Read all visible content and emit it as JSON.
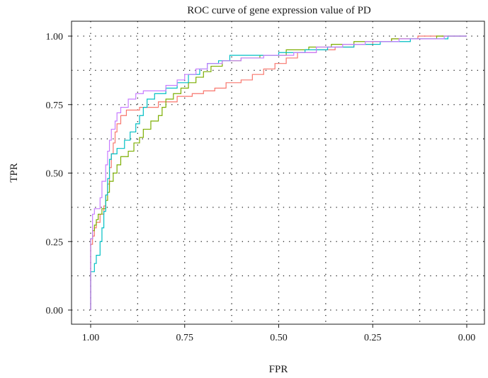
{
  "chart_data": {
    "type": "line",
    "title": "ROC curve of gene expression value of PD",
    "xlabel": "FPR",
    "ylabel": "TPR",
    "x_reversed": true,
    "xlim": [
      1.0,
      0.0
    ],
    "ylim": [
      0.0,
      1.0
    ],
    "x_ticks": [
      "1.00",
      "0.75",
      "0.50",
      "0.25",
      "0.00"
    ],
    "y_ticks": [
      "0.00",
      "0.25",
      "0.50",
      "0.75",
      "1.00"
    ],
    "x_tick_values": [
      1.0,
      0.75,
      0.5,
      0.25,
      0.0
    ],
    "y_tick_values": [
      0.0,
      0.25,
      0.5,
      0.75,
      1.0
    ],
    "grid": "dotted",
    "legend": "none",
    "series": [
      {
        "color": "#f8766d",
        "points": [
          [
            1.0,
            0.0
          ],
          [
            1.0,
            0.24
          ],
          [
            0.995,
            0.24
          ],
          [
            0.995,
            0.27
          ],
          [
            0.99,
            0.27
          ],
          [
            0.99,
            0.3
          ],
          [
            0.985,
            0.3
          ],
          [
            0.985,
            0.32
          ],
          [
            0.975,
            0.32
          ],
          [
            0.975,
            0.35
          ],
          [
            0.965,
            0.35
          ],
          [
            0.965,
            0.38
          ],
          [
            0.96,
            0.38
          ],
          [
            0.96,
            0.42
          ],
          [
            0.955,
            0.42
          ],
          [
            0.955,
            0.46
          ],
          [
            0.95,
            0.46
          ],
          [
            0.95,
            0.52
          ],
          [
            0.945,
            0.52
          ],
          [
            0.945,
            0.57
          ],
          [
            0.94,
            0.57
          ],
          [
            0.94,
            0.61
          ],
          [
            0.935,
            0.61
          ],
          [
            0.935,
            0.65
          ],
          [
            0.93,
            0.65
          ],
          [
            0.93,
            0.68
          ],
          [
            0.92,
            0.68
          ],
          [
            0.92,
            0.71
          ],
          [
            0.905,
            0.71
          ],
          [
            0.905,
            0.73
          ],
          [
            0.87,
            0.73
          ],
          [
            0.87,
            0.74
          ],
          [
            0.82,
            0.74
          ],
          [
            0.82,
            0.76
          ],
          [
            0.77,
            0.76
          ],
          [
            0.77,
            0.78
          ],
          [
            0.73,
            0.78
          ],
          [
            0.73,
            0.79
          ],
          [
            0.7,
            0.79
          ],
          [
            0.7,
            0.8
          ],
          [
            0.67,
            0.8
          ],
          [
            0.67,
            0.81
          ],
          [
            0.64,
            0.81
          ],
          [
            0.64,
            0.83
          ],
          [
            0.6,
            0.83
          ],
          [
            0.6,
            0.84
          ],
          [
            0.57,
            0.84
          ],
          [
            0.57,
            0.86
          ],
          [
            0.54,
            0.86
          ],
          [
            0.54,
            0.88
          ],
          [
            0.51,
            0.88
          ],
          [
            0.51,
            0.9
          ],
          [
            0.48,
            0.9
          ],
          [
            0.48,
            0.92
          ],
          [
            0.45,
            0.92
          ],
          [
            0.45,
            0.94
          ],
          [
            0.4,
            0.94
          ],
          [
            0.4,
            0.95
          ],
          [
            0.35,
            0.95
          ],
          [
            0.35,
            0.96
          ],
          [
            0.3,
            0.96
          ],
          [
            0.3,
            0.97
          ],
          [
            0.25,
            0.97
          ],
          [
            0.25,
            0.98
          ],
          [
            0.2,
            0.98
          ],
          [
            0.2,
            0.99
          ],
          [
            0.13,
            0.99
          ],
          [
            0.13,
            1.0
          ],
          [
            0.0,
            1.0
          ]
        ]
      },
      {
        "color": "#7cae00",
        "points": [
          [
            1.0,
            0.0
          ],
          [
            1.0,
            0.26
          ],
          [
            0.995,
            0.26
          ],
          [
            0.995,
            0.29
          ],
          [
            0.99,
            0.29
          ],
          [
            0.99,
            0.31
          ],
          [
            0.985,
            0.31
          ],
          [
            0.985,
            0.33
          ],
          [
            0.98,
            0.33
          ],
          [
            0.98,
            0.35
          ],
          [
            0.97,
            0.35
          ],
          [
            0.97,
            0.37
          ],
          [
            0.96,
            0.37
          ],
          [
            0.96,
            0.4
          ],
          [
            0.955,
            0.4
          ],
          [
            0.955,
            0.43
          ],
          [
            0.95,
            0.43
          ],
          [
            0.95,
            0.47
          ],
          [
            0.94,
            0.47
          ],
          [
            0.94,
            0.5
          ],
          [
            0.93,
            0.5
          ],
          [
            0.93,
            0.53
          ],
          [
            0.92,
            0.53
          ],
          [
            0.92,
            0.56
          ],
          [
            0.9,
            0.56
          ],
          [
            0.9,
            0.58
          ],
          [
            0.885,
            0.58
          ],
          [
            0.885,
            0.61
          ],
          [
            0.87,
            0.61
          ],
          [
            0.87,
            0.63
          ],
          [
            0.86,
            0.63
          ],
          [
            0.86,
            0.66
          ],
          [
            0.84,
            0.66
          ],
          [
            0.84,
            0.69
          ],
          [
            0.82,
            0.69
          ],
          [
            0.82,
            0.71
          ],
          [
            0.81,
            0.71
          ],
          [
            0.81,
            0.74
          ],
          [
            0.8,
            0.74
          ],
          [
            0.8,
            0.77
          ],
          [
            0.78,
            0.77
          ],
          [
            0.78,
            0.79
          ],
          [
            0.76,
            0.79
          ],
          [
            0.76,
            0.81
          ],
          [
            0.74,
            0.81
          ],
          [
            0.74,
            0.83
          ],
          [
            0.72,
            0.83
          ],
          [
            0.72,
            0.85
          ],
          [
            0.7,
            0.85
          ],
          [
            0.7,
            0.87
          ],
          [
            0.68,
            0.87
          ],
          [
            0.68,
            0.89
          ],
          [
            0.65,
            0.89
          ],
          [
            0.65,
            0.91
          ],
          [
            0.6,
            0.91
          ],
          [
            0.6,
            0.92
          ],
          [
            0.55,
            0.92
          ],
          [
            0.55,
            0.93
          ],
          [
            0.48,
            0.93
          ],
          [
            0.48,
            0.95
          ],
          [
            0.42,
            0.95
          ],
          [
            0.42,
            0.96
          ],
          [
            0.36,
            0.96
          ],
          [
            0.36,
            0.97
          ],
          [
            0.3,
            0.97
          ],
          [
            0.3,
            0.98
          ],
          [
            0.2,
            0.98
          ],
          [
            0.2,
            0.99
          ],
          [
            0.08,
            0.99
          ],
          [
            0.08,
            1.0
          ],
          [
            0.0,
            1.0
          ]
        ]
      },
      {
        "color": "#00bfc4",
        "points": [
          [
            1.0,
            0.0
          ],
          [
            1.0,
            0.14
          ],
          [
            0.99,
            0.14
          ],
          [
            0.99,
            0.17
          ],
          [
            0.985,
            0.17
          ],
          [
            0.985,
            0.2
          ],
          [
            0.975,
            0.2
          ],
          [
            0.975,
            0.25
          ],
          [
            0.97,
            0.25
          ],
          [
            0.97,
            0.3
          ],
          [
            0.965,
            0.3
          ],
          [
            0.965,
            0.36
          ],
          [
            0.96,
            0.36
          ],
          [
            0.96,
            0.42
          ],
          [
            0.955,
            0.42
          ],
          [
            0.955,
            0.48
          ],
          [
            0.95,
            0.48
          ],
          [
            0.95,
            0.55
          ],
          [
            0.945,
            0.55
          ],
          [
            0.945,
            0.57
          ],
          [
            0.93,
            0.57
          ],
          [
            0.93,
            0.59
          ],
          [
            0.91,
            0.59
          ],
          [
            0.91,
            0.62
          ],
          [
            0.895,
            0.62
          ],
          [
            0.895,
            0.65
          ],
          [
            0.88,
            0.65
          ],
          [
            0.88,
            0.68
          ],
          [
            0.87,
            0.68
          ],
          [
            0.87,
            0.71
          ],
          [
            0.86,
            0.71
          ],
          [
            0.86,
            0.74
          ],
          [
            0.85,
            0.74
          ],
          [
            0.85,
            0.77
          ],
          [
            0.83,
            0.77
          ],
          [
            0.83,
            0.79
          ],
          [
            0.8,
            0.79
          ],
          [
            0.8,
            0.81
          ],
          [
            0.77,
            0.81
          ],
          [
            0.77,
            0.83
          ],
          [
            0.74,
            0.83
          ],
          [
            0.74,
            0.86
          ],
          [
            0.71,
            0.86
          ],
          [
            0.71,
            0.88
          ],
          [
            0.69,
            0.88
          ],
          [
            0.69,
            0.9
          ],
          [
            0.66,
            0.9
          ],
          [
            0.66,
            0.91
          ],
          [
            0.63,
            0.91
          ],
          [
            0.63,
            0.93
          ],
          [
            0.5,
            0.93
          ],
          [
            0.5,
            0.94
          ],
          [
            0.43,
            0.94
          ],
          [
            0.43,
            0.95
          ],
          [
            0.37,
            0.95
          ],
          [
            0.37,
            0.96
          ],
          [
            0.3,
            0.96
          ],
          [
            0.3,
            0.97
          ],
          [
            0.23,
            0.97
          ],
          [
            0.23,
            0.98
          ],
          [
            0.15,
            0.98
          ],
          [
            0.15,
            0.99
          ],
          [
            0.05,
            0.99
          ],
          [
            0.05,
            1.0
          ],
          [
            0.0,
            1.0
          ]
        ]
      },
      {
        "color": "#c77cff",
        "points": [
          [
            1.0,
            0.0
          ],
          [
            1.0,
            0.26
          ],
          [
            0.995,
            0.26
          ],
          [
            0.995,
            0.35
          ],
          [
            0.99,
            0.35
          ],
          [
            0.99,
            0.37
          ],
          [
            0.975,
            0.37
          ],
          [
            0.975,
            0.41
          ],
          [
            0.97,
            0.41
          ],
          [
            0.97,
            0.47
          ],
          [
            0.96,
            0.47
          ],
          [
            0.96,
            0.53
          ],
          [
            0.955,
            0.53
          ],
          [
            0.955,
            0.58
          ],
          [
            0.95,
            0.58
          ],
          [
            0.95,
            0.62
          ],
          [
            0.945,
            0.62
          ],
          [
            0.945,
            0.66
          ],
          [
            0.935,
            0.66
          ],
          [
            0.935,
            0.69
          ],
          [
            0.93,
            0.69
          ],
          [
            0.93,
            0.72
          ],
          [
            0.92,
            0.72
          ],
          [
            0.92,
            0.74
          ],
          [
            0.9,
            0.74
          ],
          [
            0.9,
            0.77
          ],
          [
            0.88,
            0.77
          ],
          [
            0.88,
            0.79
          ],
          [
            0.86,
            0.79
          ],
          [
            0.86,
            0.8
          ],
          [
            0.8,
            0.8
          ],
          [
            0.8,
            0.82
          ],
          [
            0.77,
            0.82
          ],
          [
            0.77,
            0.84
          ],
          [
            0.75,
            0.84
          ],
          [
            0.75,
            0.86
          ],
          [
            0.72,
            0.86
          ],
          [
            0.72,
            0.88
          ],
          [
            0.69,
            0.88
          ],
          [
            0.69,
            0.9
          ],
          [
            0.65,
            0.9
          ],
          [
            0.65,
            0.91
          ],
          [
            0.6,
            0.91
          ],
          [
            0.6,
            0.92
          ],
          [
            0.54,
            0.92
          ],
          [
            0.54,
            0.93
          ],
          [
            0.46,
            0.93
          ],
          [
            0.46,
            0.94
          ],
          [
            0.4,
            0.94
          ],
          [
            0.4,
            0.96
          ],
          [
            0.33,
            0.96
          ],
          [
            0.33,
            0.97
          ],
          [
            0.27,
            0.97
          ],
          [
            0.27,
            0.98
          ],
          [
            0.18,
            0.98
          ],
          [
            0.18,
            0.99
          ],
          [
            0.06,
            0.99
          ],
          [
            0.06,
            1.0
          ],
          [
            0.0,
            1.0
          ]
        ]
      }
    ]
  }
}
